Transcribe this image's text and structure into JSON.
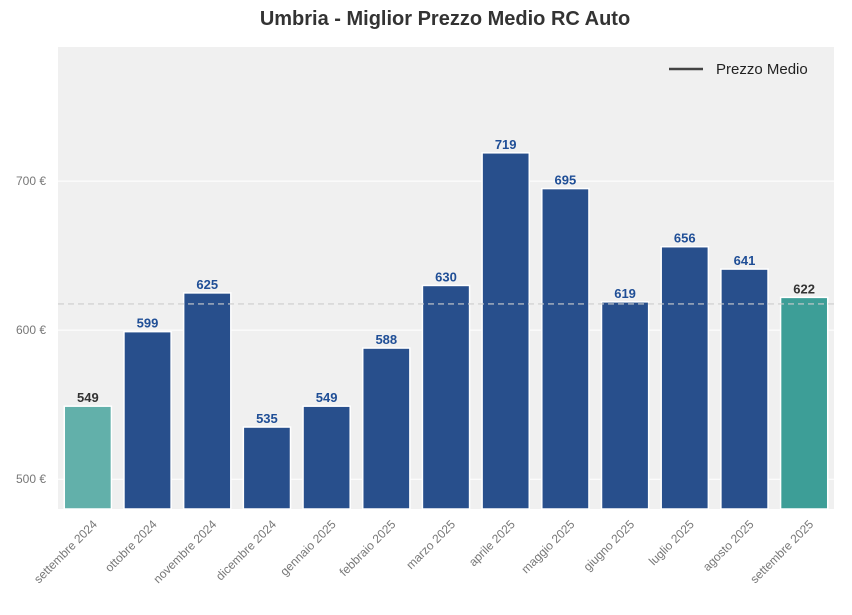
{
  "chart_data": {
    "type": "bar",
    "title": "Umbria - Miglior Prezzo Medio RC Auto",
    "xlabel": "",
    "ylabel": "",
    "categories": [
      "settembre 2024",
      "ottobre 2024",
      "novembre 2024",
      "dicembre 2024",
      "gennaio 2025",
      "febbraio 2025",
      "marzo 2025",
      "aprile 2025",
      "maggio 2025",
      "giugno 2025",
      "luglio 2025",
      "agosto 2025",
      "settembre 2025"
    ],
    "values": [
      549,
      599,
      625,
      535,
      549,
      588,
      630,
      719,
      695,
      619,
      656,
      641,
      622
    ],
    "value_labels": [
      "549",
      "599",
      "625",
      "535",
      "549",
      "588",
      "630",
      "719",
      "695",
      "619",
      "656",
      "641",
      "622"
    ],
    "ylim": [
      480,
      790
    ],
    "yticks": [
      500,
      600,
      700
    ],
    "ytick_labels": [
      "500 €",
      "600 €",
      "700 €"
    ],
    "mean_line": {
      "value": 617.6,
      "label": "Prezzo Medio"
    },
    "legend": {
      "position": "top-right",
      "entries": [
        "Prezzo Medio"
      ]
    },
    "grid": true,
    "colors": {
      "first_bar": "#62b0aa",
      "middle_bars": "#284f8c",
      "last_bar": "#3d9e97",
      "highlight_label": "#333333",
      "middle_label": "#1f4e96",
      "plot_background": "#f0f0f0",
      "grid": "#ffffff",
      "mean_line": "#cccccc",
      "legend_line": "#444444",
      "tick_text": "#777777",
      "title": "#333333"
    }
  }
}
